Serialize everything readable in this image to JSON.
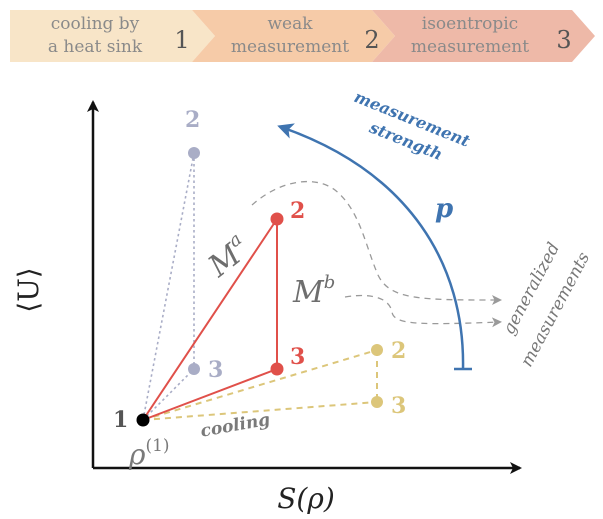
{
  "stages": [
    {
      "lines": [
        "cooling by",
        "a heat sink"
      ],
      "number": "1"
    },
    {
      "lines": [
        "weak",
        "measurement"
      ],
      "number": "2"
    },
    {
      "lines": [
        "isoentropic",
        "measurement"
      ],
      "number": "3"
    }
  ],
  "axes": {
    "x_label": "S(ρ)",
    "y_label": "⟨U⟩"
  },
  "points": {
    "origin_number": "1",
    "origin_state": "ρ",
    "origin_state_sup": "(1)",
    "gray_2": "2",
    "gray_3": "3",
    "red_2": "2",
    "red_3": "3",
    "yellow_2": "2",
    "yellow_3": "3"
  },
  "annotations": {
    "cooling": "cooling",
    "measurement_strength_line1": "measurement",
    "measurement_strength_line2": "strength",
    "p_symbol": "p",
    "generalized_line1": "generalized",
    "generalized_line2": "measurements",
    "map_a_base": "M",
    "map_a_sup": "a",
    "map_b_base": "M",
    "map_b_sup": "b"
  },
  "colors": {
    "stage1": "#f8e5c8",
    "stage2": "#f6cba8",
    "stage3": "#eeb9a8",
    "red": "#e0504a",
    "gray": "#a9adc6",
    "yellow": "#dcc67a",
    "blue": "#3f74b0",
    "dash_gray": "#9a9a9a"
  }
}
